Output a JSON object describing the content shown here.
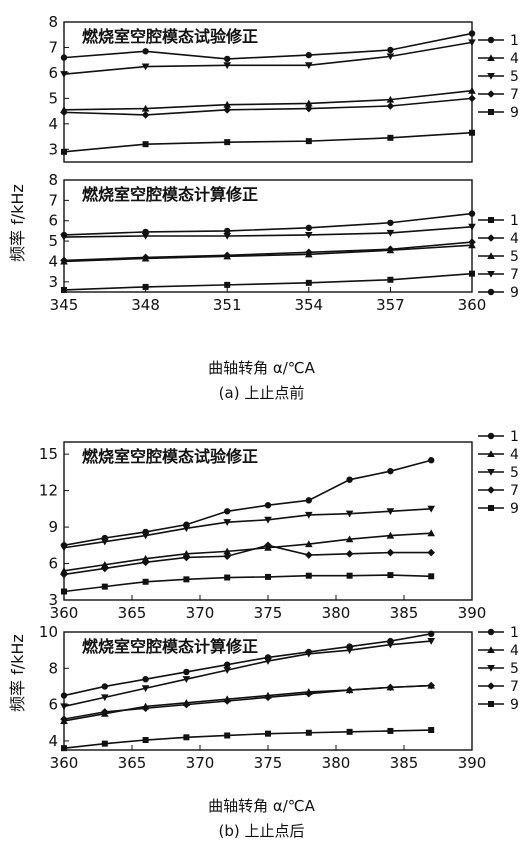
{
  "figure": {
    "caption_a": "(a) 上止点前",
    "caption_b": "(b) 上止点后",
    "y_axis_label": "频率 f/kHz",
    "x_axis_label": "曲轴转角 α/℃A"
  },
  "chart_data": [
    {
      "id": "a-test",
      "type": "line",
      "title": "燃烧室空腔模态试验修正",
      "x": [
        345,
        348,
        351,
        354,
        357,
        360
      ],
      "xlim": [
        345,
        360
      ],
      "ylim": [
        2.5,
        8
      ],
      "yticks": [
        3,
        4,
        5,
        6,
        7,
        8
      ],
      "series": [
        {
          "name": "1",
          "marker": "circle",
          "values": [
            6.6,
            6.85,
            6.55,
            6.7,
            6.9,
            7.55
          ]
        },
        {
          "name": "4",
          "marker": "triangle-up",
          "values": [
            4.55,
            4.6,
            4.75,
            4.8,
            4.95,
            5.3
          ]
        },
        {
          "name": "5",
          "marker": "triangle-down",
          "values": [
            5.95,
            6.25,
            6.3,
            6.3,
            6.65,
            7.2
          ]
        },
        {
          "name": "7",
          "marker": "diamond",
          "values": [
            4.45,
            4.35,
            4.55,
            4.6,
            4.7,
            5.0
          ]
        },
        {
          "name": "9",
          "marker": "square",
          "values": [
            2.9,
            3.2,
            3.28,
            3.32,
            3.45,
            3.65
          ]
        }
      ]
    },
    {
      "id": "a-calc",
      "type": "line",
      "title": "燃烧室空腔模态计算修正",
      "x": [
        345,
        348,
        351,
        354,
        357,
        360
      ],
      "xticks": [
        "345",
        "348",
        "351",
        "354",
        "357",
        "360"
      ],
      "xlim": [
        345,
        360
      ],
      "ylim": [
        2.5,
        8
      ],
      "yticks": [
        3,
        4,
        5,
        6,
        7,
        8
      ],
      "series": [
        {
          "name": "1",
          "marker": "square",
          "values": [
            2.6,
            2.75,
            2.85,
            2.95,
            3.1,
            3.4
          ]
        },
        {
          "name": "4",
          "marker": "diamond",
          "values": [
            4.05,
            4.2,
            4.3,
            4.45,
            4.6,
            4.95
          ]
        },
        {
          "name": "5",
          "marker": "triangle-up",
          "values": [
            4.0,
            4.15,
            4.25,
            4.35,
            4.55,
            4.8
          ]
        },
        {
          "name": "7",
          "marker": "triangle-down",
          "values": [
            5.2,
            5.25,
            5.25,
            5.3,
            5.4,
            5.7
          ]
        },
        {
          "name": "9",
          "marker": "circle",
          "values": [
            5.3,
            5.45,
            5.5,
            5.65,
            5.9,
            6.35
          ]
        }
      ]
    },
    {
      "id": "b-test",
      "type": "line",
      "title": "燃烧室空腔模态试验修正",
      "x": [
        360,
        363,
        366,
        369,
        372,
        375,
        378,
        381,
        384,
        387
      ],
      "xticks": [
        "360",
        "365",
        "370",
        "375",
        "380",
        "385",
        "390"
      ],
      "xlim": [
        360,
        390
      ],
      "ylim": [
        3,
        16
      ],
      "yticks": [
        3,
        6,
        9,
        12,
        15
      ],
      "series": [
        {
          "name": "1",
          "marker": "circle",
          "values": [
            7.5,
            8.1,
            8.6,
            9.2,
            10.3,
            10.8,
            11.2,
            12.9,
            13.6,
            14.5
          ]
        },
        {
          "name": "4",
          "marker": "triangle-up",
          "values": [
            5.4,
            5.9,
            6.4,
            6.8,
            7.0,
            7.3,
            7.6,
            8.0,
            8.3,
            8.5
          ]
        },
        {
          "name": "5",
          "marker": "triangle-down",
          "values": [
            7.3,
            7.8,
            8.3,
            8.9,
            9.4,
            9.6,
            10.0,
            10.1,
            10.3,
            10.5
          ]
        },
        {
          "name": "7",
          "marker": "diamond",
          "values": [
            5.1,
            5.6,
            6.1,
            6.5,
            6.6,
            7.5,
            6.7,
            6.8,
            6.9,
            6.9
          ]
        },
        {
          "name": "9",
          "marker": "square",
          "values": [
            3.7,
            4.1,
            4.5,
            4.7,
            4.85,
            4.9,
            5.0,
            5.0,
            5.05,
            4.95
          ]
        }
      ]
    },
    {
      "id": "b-calc",
      "type": "line",
      "title": "燃烧室空腔模态计算修正",
      "x": [
        360,
        363,
        366,
        369,
        372,
        375,
        378,
        381,
        384,
        387
      ],
      "xticks": [
        "360",
        "365",
        "370",
        "375",
        "380",
        "385",
        "390"
      ],
      "xlim": [
        360,
        390
      ],
      "ylim": [
        3.5,
        10
      ],
      "yticks": [
        4,
        6,
        8,
        10
      ],
      "series": [
        {
          "name": "1",
          "marker": "circle",
          "values": [
            6.5,
            7.0,
            7.4,
            7.8,
            8.2,
            8.6,
            8.9,
            9.2,
            9.5,
            9.9
          ]
        },
        {
          "name": "4",
          "marker": "triangle-up",
          "values": [
            5.1,
            5.5,
            5.9,
            6.1,
            6.3,
            6.5,
            6.7,
            6.8,
            6.95,
            7.05
          ]
        },
        {
          "name": "5",
          "marker": "triangle-down",
          "values": [
            5.9,
            6.4,
            6.9,
            7.4,
            7.9,
            8.4,
            8.8,
            9.0,
            9.3,
            9.5
          ]
        },
        {
          "name": "7",
          "marker": "diamond",
          "values": [
            5.2,
            5.6,
            5.8,
            6.0,
            6.2,
            6.4,
            6.6,
            6.8,
            6.95,
            7.05
          ]
        },
        {
          "name": "9",
          "marker": "square",
          "values": [
            3.6,
            3.85,
            4.05,
            4.2,
            4.3,
            4.4,
            4.45,
            4.5,
            4.55,
            4.6
          ]
        }
      ]
    }
  ]
}
